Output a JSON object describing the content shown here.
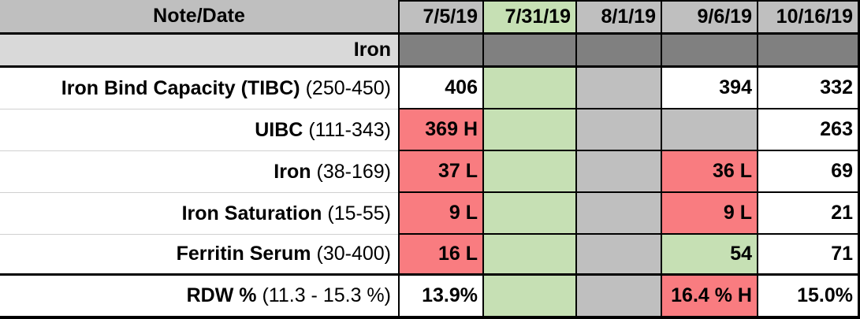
{
  "colors": {
    "hdr": "#BFBFBF",
    "label": "#D9D9D9",
    "dark": "#808080",
    "gray": "#BFBFBF",
    "green": "#C6E0B4",
    "red": "#F97C80",
    "white": "#FFFFFF",
    "grid_light": "#D0D0D0",
    "border": "#000000"
  },
  "table": {
    "header": {
      "label": "Note/Date",
      "dates": [
        "7/5/19",
        "7/31/19",
        "8/1/19",
        "9/6/19",
        "10/16/19"
      ],
      "date_bg": [
        "hdr",
        "green",
        "hdr",
        "hdr",
        "hdr"
      ]
    },
    "section_label": "Iron",
    "rows": [
      {
        "name": "Iron Bind Capacity (TIBC)",
        "range": "(250-450)",
        "cells": [
          {
            "text": "406",
            "bg": "white"
          },
          {
            "text": "",
            "bg": "green"
          },
          {
            "text": "",
            "bg": "gray"
          },
          {
            "text": "394",
            "bg": "white"
          },
          {
            "text": "332",
            "bg": "white"
          }
        ]
      },
      {
        "name": "UIBC",
        "range": "(111-343)",
        "cells": [
          {
            "text": "369 H",
            "bg": "red"
          },
          {
            "text": "",
            "bg": "green"
          },
          {
            "text": "",
            "bg": "gray"
          },
          {
            "text": "",
            "bg": "gray"
          },
          {
            "text": "263",
            "bg": "white"
          }
        ]
      },
      {
        "name": "Iron",
        "range": "(38-169)",
        "cells": [
          {
            "text": "37 L",
            "bg": "red"
          },
          {
            "text": "",
            "bg": "green"
          },
          {
            "text": "",
            "bg": "gray"
          },
          {
            "text": "36 L",
            "bg": "red"
          },
          {
            "text": "69",
            "bg": "white"
          }
        ]
      },
      {
        "name": "Iron Saturation",
        "range": "(15-55)",
        "cells": [
          {
            "text": "9 L",
            "bg": "red"
          },
          {
            "text": "",
            "bg": "green"
          },
          {
            "text": "",
            "bg": "gray"
          },
          {
            "text": "9 L",
            "bg": "red"
          },
          {
            "text": "21",
            "bg": "white"
          }
        ]
      },
      {
        "name": "Ferritin Serum",
        "range": "(30-400)",
        "cells": [
          {
            "text": "16 L",
            "bg": "red"
          },
          {
            "text": "",
            "bg": "green"
          },
          {
            "text": "",
            "bg": "gray"
          },
          {
            "text": "54",
            "bg": "green"
          },
          {
            "text": "71",
            "bg": "white"
          }
        ]
      },
      {
        "name": "RDW %",
        "range": "(11.3 - 15.3 %)",
        "cells": [
          {
            "text": "13.9%",
            "bg": "white"
          },
          {
            "text": "",
            "bg": "green"
          },
          {
            "text": "",
            "bg": "gray"
          },
          {
            "text": "16.4 % H",
            "bg": "red"
          },
          {
            "text": "15.0%",
            "bg": "white"
          }
        ]
      }
    ]
  }
}
